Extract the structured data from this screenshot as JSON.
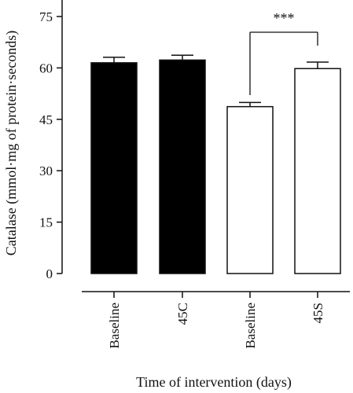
{
  "chart_data": {
    "type": "bar",
    "title": "",
    "xlabel": "Time of intervention (days)",
    "ylabel": "Catalase (mmol·mg of protein·seconds)",
    "ylim": [
      0,
      75
    ],
    "yticks": [
      0,
      15,
      30,
      45,
      60,
      75
    ],
    "grid": false,
    "categories": [
      "Baseline",
      "45C",
      "Baseline",
      "45S"
    ],
    "values": [
      61.5,
      62.3,
      48.7,
      59.8
    ],
    "errors": [
      1.6,
      1.4,
      1.2,
      1.9
    ],
    "bar_fills": [
      "#000000",
      "#000000",
      "#ffffff",
      "#ffffff"
    ],
    "significance": [
      {
        "from": 2,
        "to": 3,
        "label": "***"
      }
    ]
  }
}
